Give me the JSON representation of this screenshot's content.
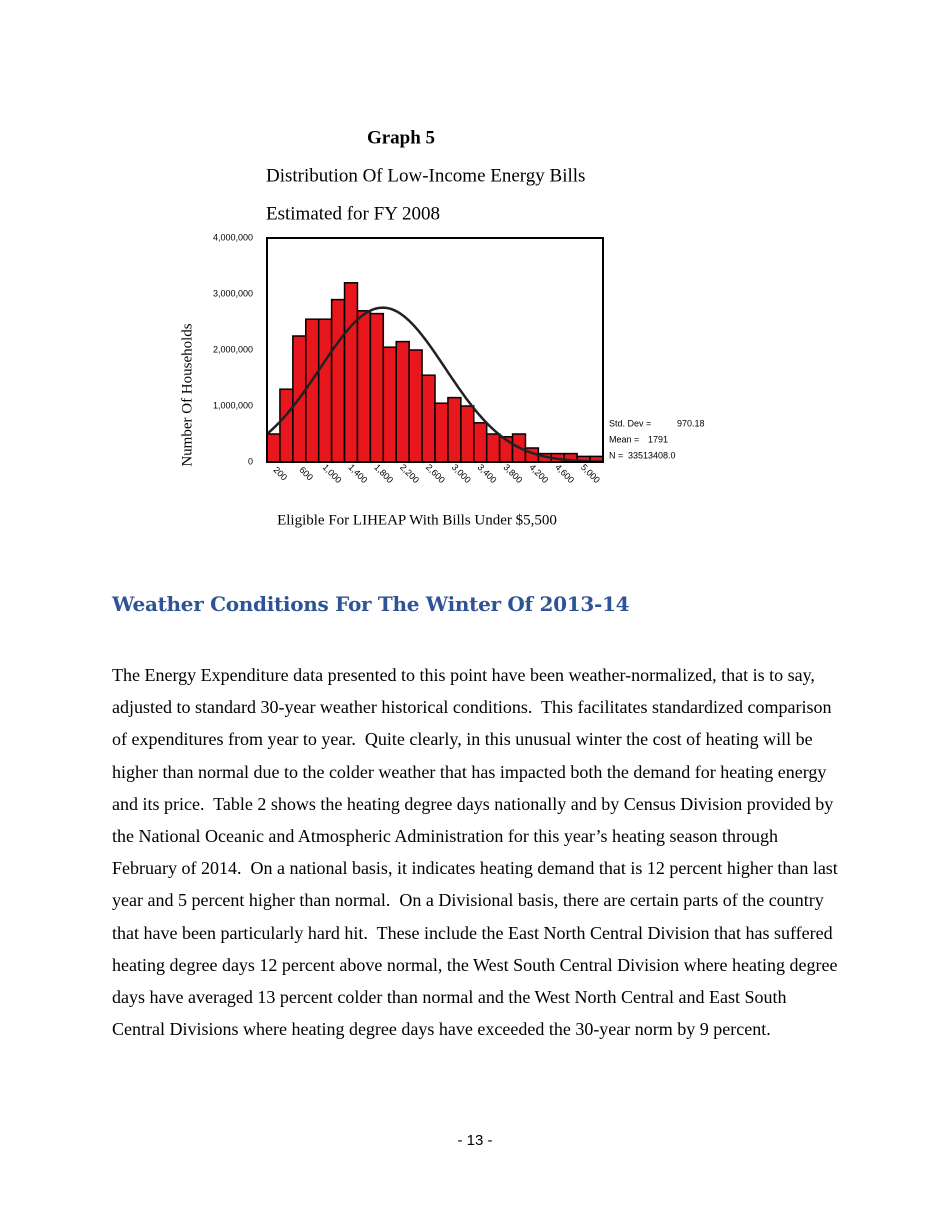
{
  "chart_data": {
    "type": "histogram",
    "title": "Graph 5",
    "subtitle": "Distribution Of Low-Income Energy Bills",
    "subtitle2": "Estimated for FY 2008",
    "x_label": "Eligible For LIHEAP With Bills Under $5,500",
    "y_label": "Number Of Households",
    "bins": [
      0,
      200,
      400,
      600,
      800,
      1000,
      1200,
      1400,
      1600,
      1800,
      2000,
      2200,
      2400,
      2600,
      2800,
      3000,
      3200,
      3400,
      3600,
      3800,
      4000,
      4200,
      4400,
      4600,
      4800,
      5000,
      5200
    ],
    "values": [
      500000,
      1300000,
      2250000,
      2550000,
      2550000,
      2900000,
      3200000,
      2700000,
      2650000,
      2050000,
      2150000,
      2000000,
      1550000,
      1050000,
      1150000,
      1000000,
      700000,
      500000,
      450000,
      500000,
      250000,
      150000,
      150000,
      150000,
      100000,
      100000
    ],
    "color": "#e8161d",
    "xlim": [
      0,
      5200
    ],
    "xticks": [
      200,
      600,
      {
        "value": 1000,
        "label": "1,000"
      },
      {
        "value": 1400,
        "label": "1,400"
      },
      {
        "value": 1800,
        "label": "1,800"
      },
      {
        "value": 2200,
        "label": "2,200"
      },
      {
        "value": 2600,
        "label": "2,600"
      },
      {
        "value": 3000,
        "label": "3,000"
      },
      {
        "value": 3400,
        "label": "3,400"
      },
      {
        "value": 3800,
        "label": "3,800"
      },
      {
        "value": 4200,
        "label": "4,200"
      },
      {
        "value": 4600,
        "label": "4,600"
      },
      {
        "value": 5000,
        "label": "5,000"
      }
    ],
    "ylim": [
      0,
      4000000
    ],
    "yticks": [
      0,
      {
        "value": 1000000,
        "label": "1,000,000"
      },
      {
        "value": 2000000,
        "label": "2,000,000"
      },
      {
        "value": 3000000,
        "label": "3,000,000"
      },
      {
        "value": 4000000,
        "label": "4,000,000"
      }
    ],
    "stats": [
      {
        "name": "Std.  Dev  =",
        "value": 970.18
      },
      {
        "name": "Mean  =",
        "value": 1791
      },
      {
        "name": "N  =",
        "value": {
          "value": 33513408,
          "label": "33513408.0"
        }
      }
    ]
  },
  "heading": "Weather Conditions For The Winter Of 2013-14",
  "paragraph": "The Energy Expenditure data presented to this point have been weather-normalized, that is to say, adjusted to standard 30-year weather historical conditions.  This facilitates standardized comparison of expenditures from year to year.  Quite clearly, in this unusual winter the cost of heating will be higher than normal due to the colder weather that has impacted both the demand for heating energy and its price.  Table 2 shows the heating degree days nationally and by Census Division provided by the National Oceanic and Atmospheric Administration for this year’s heating season through February of 2014.  On a national basis, it indicates heating demand that is 12 percent higher than last year and 5 percent higher than normal.  On a Divisional basis, there are certain parts of the country that have been particularly hard hit.  These include the East North Central Division that has suffered heating degree days 12 percent above normal, the West South Central Division where heating degree days have averaged 13 percent colder than normal and the West North Central and East South Central Divisions where heating degree days have exceeded the 30-year norm by 9 percent.",
  "page_number": "- 13 -"
}
